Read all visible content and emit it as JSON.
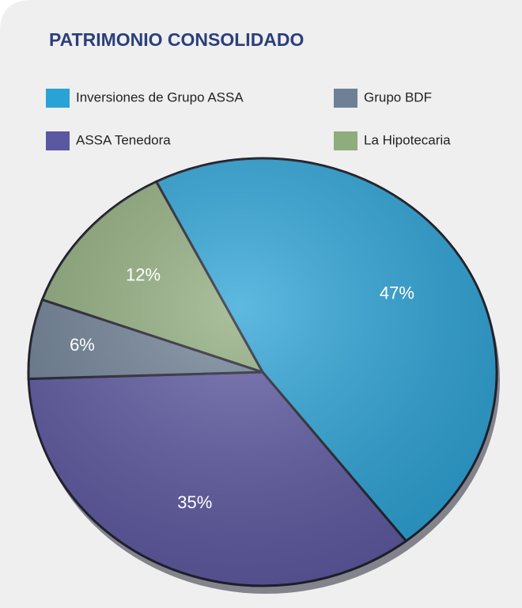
{
  "chart_data": {
    "type": "pie",
    "title": "PATRIMONIO CONSOLIDADO",
    "categories": [
      "Inversiones de Grupo ASSA",
      "ASSA Tenedora",
      "Grupo BDF",
      "La Hipotecaria"
    ],
    "values": [
      47,
      35,
      6,
      12
    ],
    "value_labels": [
      "47%",
      "35%",
      "6%",
      "12%"
    ],
    "colors": [
      "#29a2d6",
      "#5c57a1",
      "#6e8095",
      "#8fac7d"
    ]
  }
}
